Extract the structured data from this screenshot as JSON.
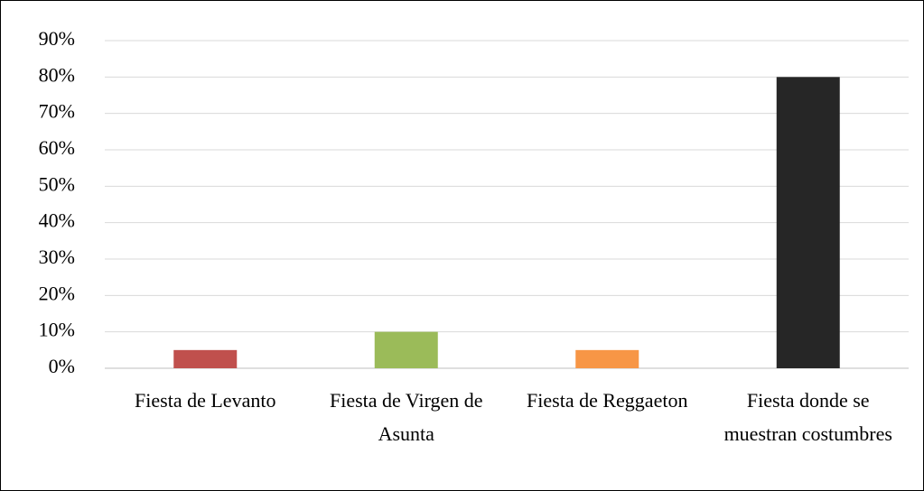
{
  "chart_data": {
    "type": "bar",
    "categories": [
      "Fiesta de Levanto",
      "Fiesta de Virgen de Asunta",
      "Fiesta de Reggaeton",
      "Fiesta donde se muestran costumbres"
    ],
    "values": [
      5,
      10,
      5,
      80
    ],
    "colors": [
      "#c0504d",
      "#9bbb59",
      "#f79646",
      "#262626"
    ],
    "ylim": [
      0,
      90
    ],
    "yticks": [
      {
        "value": 0,
        "label": "0%"
      },
      {
        "value": 10,
        "label": "10%"
      },
      {
        "value": 20,
        "label": "20%"
      },
      {
        "value": 30,
        "label": "30%"
      },
      {
        "value": 40,
        "label": "40%"
      },
      {
        "value": 50,
        "label": "50%"
      },
      {
        "value": 60,
        "label": "60%"
      },
      {
        "value": 70,
        "label": "70%"
      },
      {
        "value": 80,
        "label": "80%"
      },
      {
        "value": 90,
        "label": "90%"
      }
    ],
    "grid": true
  }
}
